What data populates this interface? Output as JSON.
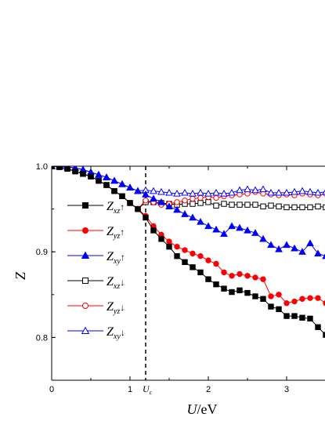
{
  "chart_data": {
    "type": "line",
    "title": "",
    "xlabel_parts": {
      "var": "U",
      "unit": "/eV"
    },
    "ylabel": "Z",
    "xlim": [
      0,
      3.5
    ],
    "ylim": [
      0.75,
      1.0
    ],
    "x_ticks": [
      0,
      1,
      2,
      3
    ],
    "y_ticks": [
      0.8,
      0.9,
      1.0
    ],
    "x_tick_labels": [
      "0",
      "1",
      "2",
      "3"
    ],
    "y_tick_labels": [
      "0.8",
      "0.9",
      "1.0"
    ],
    "grid": false,
    "legend_position": "left",
    "annotation": {
      "x": 1.2,
      "label": "U",
      "sub": "c",
      "style": "dashed-vertical-line"
    },
    "x": [
      0,
      0.1,
      0.2,
      0.3,
      0.4,
      0.5,
      0.6,
      0.7,
      0.8,
      0.9,
      1.0,
      1.1,
      1.2,
      1.3,
      1.4,
      1.5,
      1.6,
      1.7,
      1.8,
      1.9,
      2.0,
      2.1,
      2.2,
      2.3,
      2.4,
      2.5,
      2.6,
      2.7,
      2.8,
      2.9,
      3.0,
      3.1,
      3.2,
      3.3,
      3.4,
      3.5
    ],
    "series": [
      {
        "name": "Z",
        "sub": "xz",
        "spin": "↑",
        "color": "#000000",
        "marker": "square",
        "filled": true,
        "values": [
          1.0,
          0.999,
          0.997,
          0.994,
          0.991,
          0.988,
          0.983,
          0.978,
          0.971,
          0.965,
          0.957,
          0.95,
          0.94,
          0.925,
          0.915,
          0.906,
          0.895,
          0.888,
          0.882,
          0.876,
          0.868,
          0.862,
          0.857,
          0.853,
          0.855,
          0.852,
          0.848,
          0.845,
          0.836,
          0.833,
          0.825,
          0.825,
          0.823,
          0.822,
          0.812,
          0.803
        ]
      },
      {
        "name": "Z",
        "sub": "yz",
        "spin": "↑",
        "color": "#ff0000",
        "marker": "circle",
        "filled": true,
        "values": [
          1.0,
          0.999,
          0.997,
          0.994,
          0.991,
          0.988,
          0.983,
          0.978,
          0.971,
          0.965,
          0.957,
          0.95,
          0.942,
          0.93,
          0.92,
          0.912,
          0.906,
          0.902,
          0.898,
          0.895,
          0.89,
          0.886,
          0.876,
          0.872,
          0.874,
          0.872,
          0.87,
          0.868,
          0.848,
          0.85,
          0.84,
          0.842,
          0.845,
          0.846,
          0.846,
          0.84
        ]
      },
      {
        "name": "Z",
        "sub": "xy",
        "spin": "↑",
        "color": "#0000ff",
        "marker": "triangle",
        "filled": true,
        "values": [
          1.0,
          1.0,
          0.999,
          0.998,
          0.996,
          0.993,
          0.99,
          0.987,
          0.983,
          0.979,
          0.975,
          0.971,
          0.967,
          0.962,
          0.958,
          0.953,
          0.949,
          0.944,
          0.94,
          0.935,
          0.93,
          0.926,
          0.921,
          0.93,
          0.928,
          0.925,
          0.922,
          0.915,
          0.908,
          0.903,
          0.908,
          0.904,
          0.9,
          0.91,
          0.898,
          0.895
        ]
      },
      {
        "name": "Z",
        "sub": "xz",
        "spin": "↓",
        "color": "#000000",
        "marker": "square",
        "filled": false,
        "values": [
          1.0,
          0.999,
          0.997,
          0.994,
          0.991,
          0.988,
          0.983,
          0.978,
          0.971,
          0.965,
          0.957,
          0.95,
          0.958,
          0.958,
          0.957,
          0.956,
          0.955,
          0.956,
          0.956,
          0.957,
          0.958,
          0.954,
          0.956,
          0.955,
          0.955,
          0.955,
          0.955,
          0.953,
          0.954,
          0.953,
          0.952,
          0.952,
          0.952,
          0.952,
          0.953,
          0.952
        ]
      },
      {
        "name": "Z",
        "sub": "yz",
        "spin": "↓",
        "color": "#ff0000",
        "marker": "circle",
        "filled": false,
        "values": [
          1.0,
          0.999,
          0.997,
          0.994,
          0.991,
          0.988,
          0.983,
          0.978,
          0.971,
          0.965,
          0.957,
          0.95,
          0.96,
          0.958,
          0.955,
          0.956,
          0.958,
          0.96,
          0.962,
          0.963,
          0.964,
          0.963,
          0.965,
          0.966,
          0.967,
          0.968,
          0.97,
          0.968,
          0.967,
          0.966,
          0.967,
          0.966,
          0.968,
          0.967,
          0.966,
          0.968
        ]
      },
      {
        "name": "Z",
        "sub": "xy",
        "spin": "↓",
        "color": "#0000ff",
        "marker": "triangle",
        "filled": false,
        "values": [
          1.0,
          1.0,
          0.999,
          0.998,
          0.996,
          0.993,
          0.99,
          0.987,
          0.983,
          0.979,
          0.975,
          0.971,
          0.972,
          0.971,
          0.97,
          0.969,
          0.968,
          0.969,
          0.968,
          0.969,
          0.968,
          0.969,
          0.968,
          0.969,
          0.972,
          0.973,
          0.972,
          0.973,
          0.969,
          0.969,
          0.969,
          0.97,
          0.971,
          0.97,
          0.969,
          0.97
        ]
      }
    ]
  }
}
